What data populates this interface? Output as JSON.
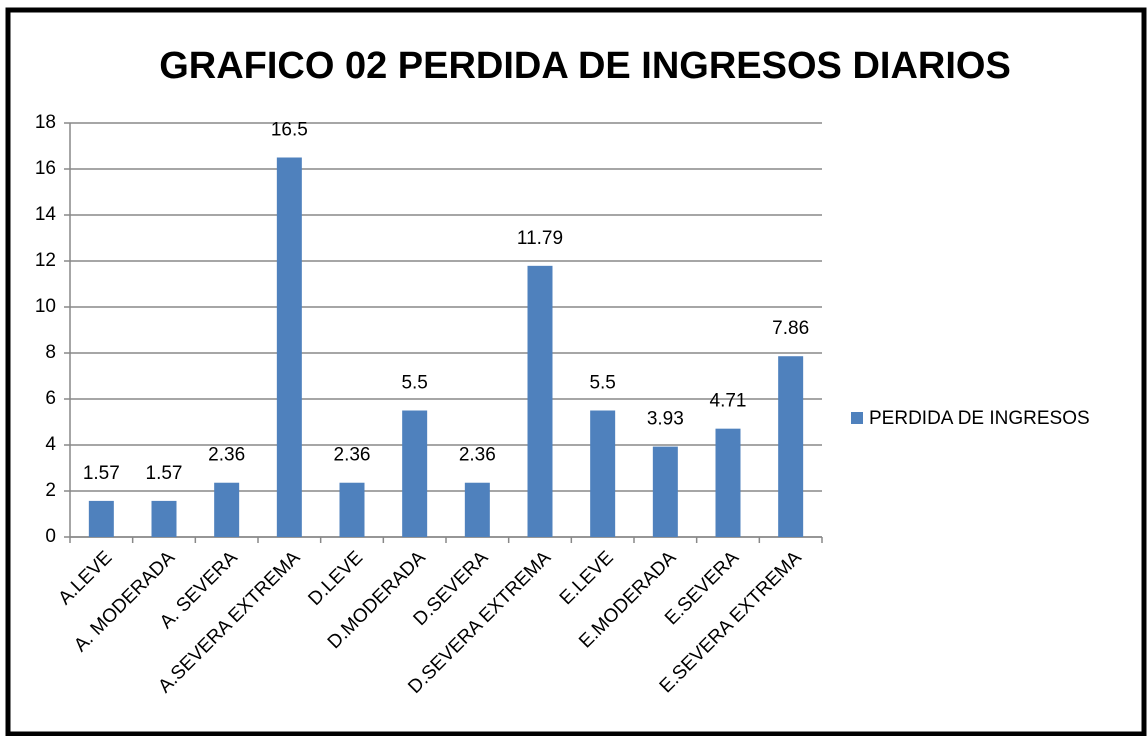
{
  "chart_data": {
    "type": "bar",
    "title": "GRAFICO 02 PERDIDA DE INGRESOS  DIARIOS",
    "categories": [
      "A.LEVE",
      "A. MODERADA",
      "A. SEVERA",
      "A.SEVERA EXTREMA",
      "D.LEVE",
      "D.MODERADA",
      "D.SEVERA",
      "D.SEVERA EXTREMA",
      "E.LEVE",
      "E.MODERADA",
      "E.SEVERA",
      "E.SEVERA EXTREMA"
    ],
    "series": [
      {
        "name": "PERDIDA DE INGRESOS",
        "color": "#4f81bd",
        "values": [
          1.57,
          1.57,
          2.36,
          16.5,
          2.36,
          5.5,
          2.36,
          11.79,
          5.5,
          3.93,
          4.71,
          7.86
        ]
      }
    ],
    "ylim": [
      0,
      18
    ],
    "yticks": [
      0,
      2,
      4,
      6,
      8,
      10,
      12,
      14,
      16,
      18
    ],
    "grid": true,
    "legend": "right"
  }
}
